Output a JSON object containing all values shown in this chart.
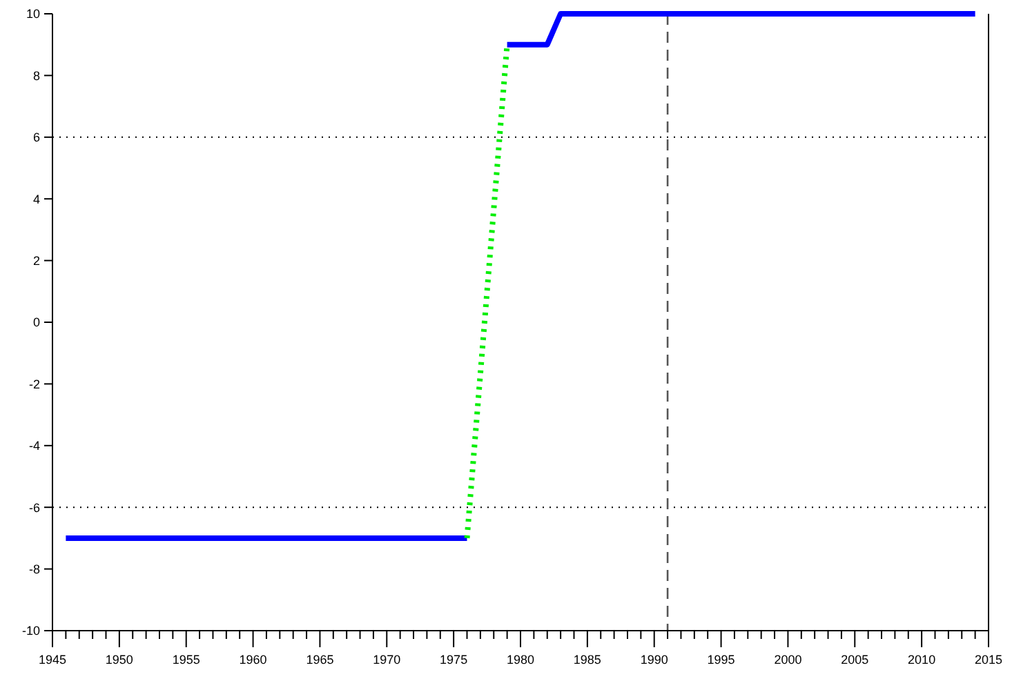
{
  "chart_data": {
    "type": "line",
    "xlim": [
      1945,
      2015
    ],
    "ylim": [
      -10,
      10
    ],
    "xticks": [
      1945,
      {
        "value": 1946,
        "label": null
      },
      {
        "value": 1947,
        "label": null
      },
      {
        "value": 1948,
        "label": null
      },
      {
        "value": 1949,
        "label": null
      },
      1950,
      {
        "value": 1951,
        "label": null
      },
      {
        "value": 1952,
        "label": null
      },
      {
        "value": 1953,
        "label": null
      },
      {
        "value": 1954,
        "label": null
      },
      1955,
      {
        "value": 1956,
        "label": null
      },
      {
        "value": 1957,
        "label": null
      },
      {
        "value": 1958,
        "label": null
      },
      {
        "value": 1959,
        "label": null
      },
      1960,
      {
        "value": 1961,
        "label": null
      },
      {
        "value": 1962,
        "label": null
      },
      {
        "value": 1963,
        "label": null
      },
      {
        "value": 1964,
        "label": null
      },
      1965,
      {
        "value": 1966,
        "label": null
      },
      {
        "value": 1967,
        "label": null
      },
      {
        "value": 1968,
        "label": null
      },
      {
        "value": 1969,
        "label": null
      },
      1970,
      {
        "value": 1971,
        "label": null
      },
      {
        "value": 1972,
        "label": null
      },
      {
        "value": 1973,
        "label": null
      },
      {
        "value": 1974,
        "label": null
      },
      1975,
      {
        "value": 1976,
        "label": null
      },
      {
        "value": 1977,
        "label": null
      },
      {
        "value": 1978,
        "label": null
      },
      {
        "value": 1979,
        "label": null
      },
      1980,
      {
        "value": 1981,
        "label": null
      },
      {
        "value": 1982,
        "label": null
      },
      {
        "value": 1983,
        "label": null
      },
      {
        "value": 1984,
        "label": null
      },
      1985,
      {
        "value": 1986,
        "label": null
      },
      {
        "value": 1987,
        "label": null
      },
      {
        "value": 1988,
        "label": null
      },
      {
        "value": 1989,
        "label": null
      },
      1990,
      {
        "value": 1991,
        "label": null
      },
      {
        "value": 1992,
        "label": null
      },
      {
        "value": 1993,
        "label": null
      },
      {
        "value": 1994,
        "label": null
      },
      1995,
      {
        "value": 1996,
        "label": null
      },
      {
        "value": 1997,
        "label": null
      },
      {
        "value": 1998,
        "label": null
      },
      {
        "value": 1999,
        "label": null
      },
      2000,
      {
        "value": 2001,
        "label": null
      },
      {
        "value": 2002,
        "label": null
      },
      {
        "value": 2003,
        "label": null
      },
      {
        "value": 2004,
        "label": null
      },
      2005,
      {
        "value": 2006,
        "label": null
      },
      {
        "value": 2007,
        "label": null
      },
      {
        "value": 2008,
        "label": null
      },
      {
        "value": 2009,
        "label": null
      },
      2010,
      {
        "value": 2011,
        "label": null
      },
      {
        "value": 2012,
        "label": null
      },
      {
        "value": 2013,
        "label": null
      },
      {
        "value": 2014,
        "label": null
      },
      2015
    ],
    "yticks": [
      -10,
      -8,
      -6,
      -4,
      -2,
      0,
      2,
      4,
      6,
      8,
      10
    ],
    "grid": false,
    "marker": "none",
    "series": [
      {
        "color": "#0000ff",
        "x": [
          1946,
          1976
        ],
        "values": [
          -7,
          -7
        ],
        "line_style": "solid"
      },
      {
        "color": "#00ee00",
        "x": [
          1976,
          1979
        ],
        "values": [
          -7,
          9
        ],
        "line_style": "dotted"
      },
      {
        "color": "#0000ff",
        "x": [
          1979,
          1982,
          1983,
          2014
        ],
        "values": [
          9,
          9,
          10,
          10
        ],
        "line_style": "solid"
      }
    ],
    "ref_lines": [
      {
        "axis": "y",
        "value": 6,
        "line_style": "dotted",
        "color": "#000000"
      },
      {
        "axis": "y",
        "value": -6,
        "line_style": "dotted",
        "color": "#000000"
      },
      {
        "axis": "x",
        "value": 1991,
        "line_style": "dashed",
        "color": "#555555"
      }
    ]
  }
}
